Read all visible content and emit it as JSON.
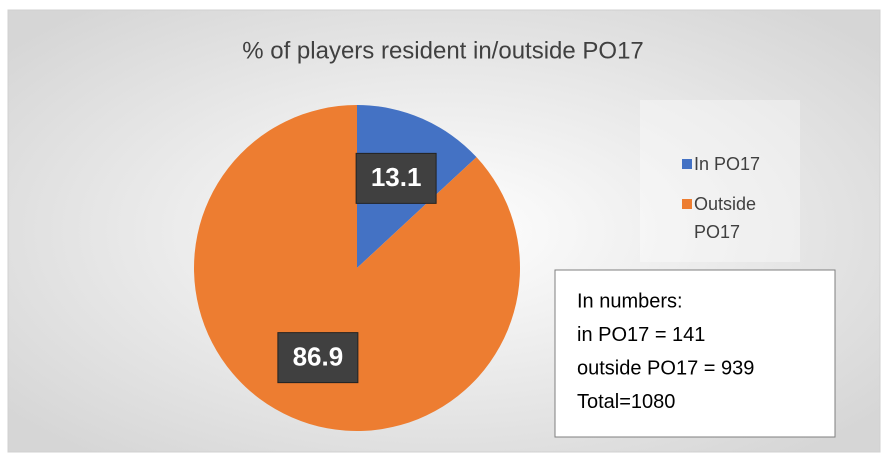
{
  "chart_data": {
    "type": "pie",
    "title": "% of players resident in/outside PO17",
    "categories": [
      "In PO17",
      "Outside PO17"
    ],
    "values": [
      13.1,
      86.9
    ],
    "colors": [
      "#4472c4",
      "#ed7d31"
    ],
    "legend": "right",
    "annotation": [
      "In numbers:",
      "in PO17 = 141",
      "outside PO17 = 939",
      "Total=1080"
    ]
  }
}
